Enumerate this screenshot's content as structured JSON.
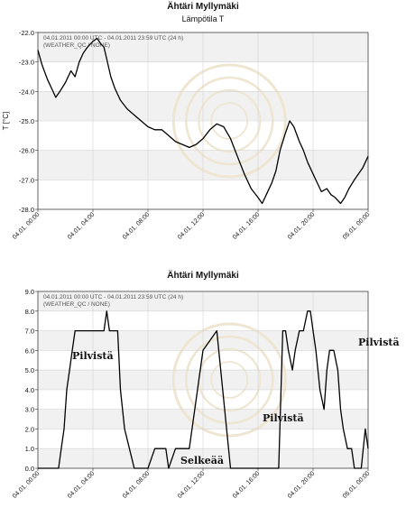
{
  "chart_data": [
    {
      "type": "line",
      "title": "Ähtäri Myllymäki",
      "subtitle": "Lämpötila T",
      "meta": [
        "04.01.2011 00:00 UTC - 04.01.2011 23:59 UTC (24 h)",
        "(WEATHER_QC / NONE)"
      ],
      "xlabel": "",
      "ylabel": "T [°C]",
      "ylim": [
        -28.0,
        -22.0
      ],
      "yticks": [
        "-22.0",
        "-23.0",
        "-24.0",
        "-25.0",
        "-26.0",
        "-27.0",
        "-28.0"
      ],
      "xlim": [
        0,
        24
      ],
      "xticks": [
        "04.01. 00:00",
        "04.01. 04:00",
        "04.01. 08:00",
        "04.01. 12:00",
        "04.01. 16:00",
        "04.01. 20:00",
        "05.01. 00:00"
      ],
      "grid": true,
      "color": "#000000",
      "series": [
        {
          "x": [
            0,
            0.3,
            0.7,
            1.0,
            1.3,
            1.6,
            2.0,
            2.4,
            2.7,
            3.0,
            3.3,
            3.6,
            4.0,
            4.3,
            4.6,
            4.8,
            5.0,
            5.3,
            5.6,
            6.0,
            6.5,
            7.0,
            7.5,
            8.0,
            8.5,
            9.0,
            9.5,
            10.0,
            10.5,
            11.0,
            11.5,
            12.0,
            12.5,
            13.0,
            13.5,
            14.0,
            14.5,
            15.0,
            15.5,
            16.0,
            16.3,
            16.6,
            17.0,
            17.3,
            17.6,
            18.0,
            18.3,
            18.6,
            19.0,
            19.3,
            19.6,
            20.0,
            20.3,
            20.6,
            21.0,
            21.3,
            21.6,
            22.0,
            22.3,
            22.6,
            23.0,
            23.3,
            23.6,
            24.0
          ],
          "y": [
            -22.6,
            -23.1,
            -23.6,
            -23.9,
            -24.2,
            -24.0,
            -23.7,
            -23.3,
            -23.5,
            -23.0,
            -22.7,
            -22.5,
            -22.3,
            -22.2,
            -22.4,
            -22.5,
            -22.9,
            -23.5,
            -23.9,
            -24.3,
            -24.6,
            -24.8,
            -25.0,
            -25.2,
            -25.3,
            -25.3,
            -25.5,
            -25.7,
            -25.8,
            -25.9,
            -25.8,
            -25.6,
            -25.3,
            -25.1,
            -25.2,
            -25.6,
            -26.2,
            -26.8,
            -27.3,
            -27.6,
            -27.8,
            -27.5,
            -27.1,
            -26.7,
            -26.0,
            -25.4,
            -25.0,
            -25.2,
            -25.7,
            -26.0,
            -26.4,
            -26.8,
            -27.1,
            -27.4,
            -27.3,
            -27.5,
            -27.6,
            -27.8,
            -27.6,
            -27.3,
            -27.0,
            -26.8,
            -26.6,
            -26.2
          ]
        }
      ]
    },
    {
      "type": "line",
      "title": "Ähtäri Myllymäki",
      "meta": [
        "04.01.2011 00:00 UTC - 04.01.2011 23:59 UTC (24 h)",
        "(WEATHER_QC / NONE)"
      ],
      "xlabel": "",
      "ylabel": "",
      "ylim": [
        0.0,
        9.0
      ],
      "yticks": [
        "9.0",
        "8.0",
        "7.0",
        "6.0",
        "5.0",
        "4.0",
        "3.0",
        "2.0",
        "1.0",
        "0.0"
      ],
      "xlim": [
        0,
        24
      ],
      "xticks": [
        "04.01. 00:00",
        "04.01. 04:00",
        "04.01. 08:00",
        "04.01. 12:00",
        "04.01. 16:00",
        "04.01. 20:00",
        "05.01. 00:00"
      ],
      "grid": true,
      "color": "#000000",
      "annotations": [
        "Pilvistä",
        "Selkeää",
        "Pilvistä",
        "Pilvistä"
      ],
      "series": [
        {
          "x": [
            0,
            1.5,
            1.7,
            1.9,
            2.1,
            2.3,
            2.5,
            2.7,
            3.0,
            4.8,
            5.0,
            5.2,
            5.6,
            5.8,
            6.0,
            6.3,
            7.0,
            7.5,
            8.0,
            8.5,
            8.7,
            9.0,
            9.3,
            9.5,
            10.0,
            11.0,
            12.0,
            13.0,
            14.0,
            15.0,
            15.5,
            16.0,
            16.3,
            16.5,
            16.8,
            17.2,
            17.5,
            17.8,
            18.0,
            18.2,
            18.5,
            18.7,
            19.0,
            19.3,
            19.6,
            19.8,
            20.0,
            20.2,
            20.5,
            20.8,
            21.0,
            21.2,
            21.5,
            21.8,
            22.0,
            22.2,
            22.5,
            22.8,
            23.0,
            23.2,
            23.5,
            23.8,
            24.0
          ],
          "y": [
            0,
            0,
            1,
            2,
            4,
            5,
            6,
            7,
            7,
            7,
            8,
            7,
            7,
            7,
            4,
            2,
            0,
            0,
            0,
            1,
            1,
            1,
            1,
            0,
            1,
            1,
            6,
            7,
            0,
            0,
            0,
            0,
            0,
            0,
            0,
            0,
            0,
            7,
            7,
            6,
            5,
            6,
            7,
            7,
            8,
            8,
            7,
            6,
            4,
            3,
            5,
            6,
            6,
            5,
            3,
            2,
            1,
            1,
            0,
            0,
            0,
            2,
            1
          ]
        }
      ]
    }
  ]
}
